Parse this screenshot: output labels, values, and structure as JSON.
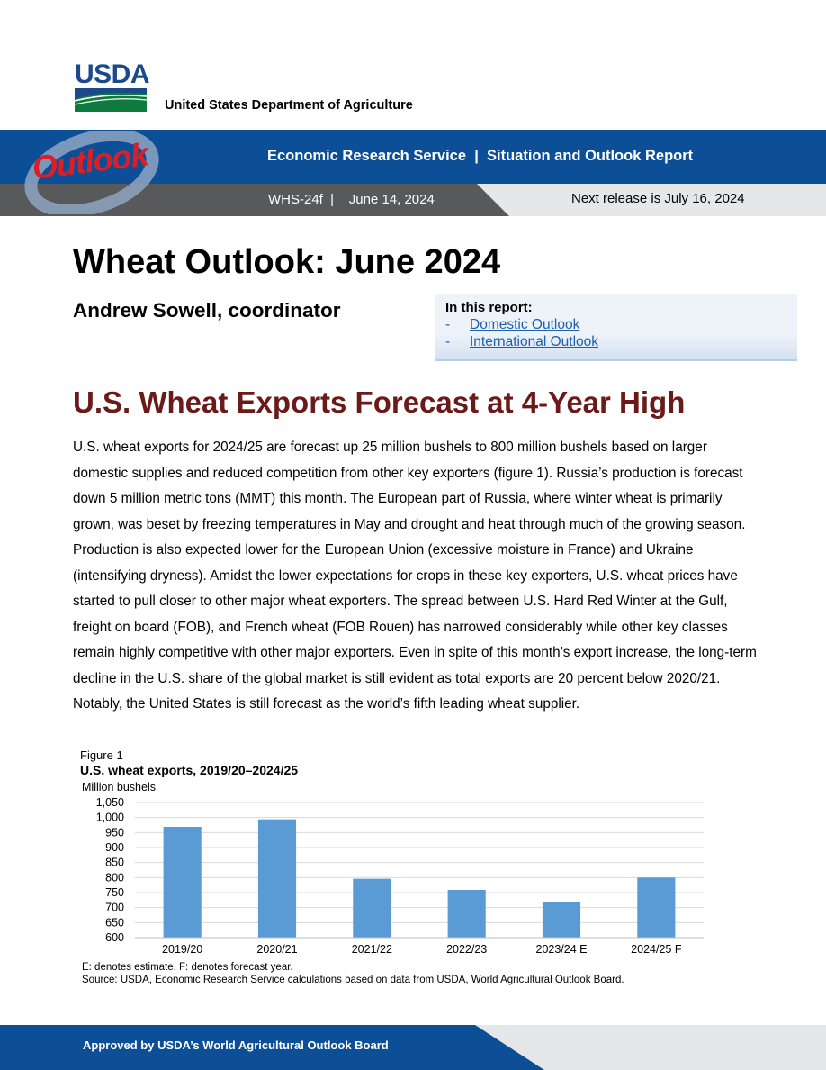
{
  "logo": {
    "word": "USDA",
    "agency": "United States Department of Agriculture"
  },
  "header": {
    "masthead": "Outlook",
    "service_line": "Economic Research Service  |  Situation and Outlook Report",
    "publication": "WHS-24f  |    June 14, 2024",
    "next_release": "Next release is July 16, 2024"
  },
  "title": "Wheat Outlook: June 2024",
  "coordinator": "Andrew Sowell, coordinator",
  "in_this_report": {
    "heading": "In this report:",
    "items": [
      {
        "dash": "-",
        "label": "Domestic Outlook"
      },
      {
        "dash": "-",
        "label": "International Outlook"
      }
    ]
  },
  "section_title": "U.S. Wheat Exports Forecast at 4-Year High",
  "body": "U.S. wheat exports for 2024/25 are forecast up 25 million bushels to 800 million bushels based on larger domestic supplies and reduced competition from other key exporters (figure 1). Russia’s production is forecast down 5 million metric tons (MMT) this month.  The European part of Russia, where winter wheat is primarily grown, was beset by freezing temperatures in May and drought and heat through much of the growing season. Production is also expected lower for the European Union (excessive moisture in France) and Ukraine (intensifying dryness). Amidst the lower expectations for crops in these key exporters, U.S. wheat prices have started to pull closer to other major wheat exporters. The spread between U.S. Hard Red Winter at the Gulf, freight on board (FOB), and French wheat (FOB Rouen) has narrowed considerably while other key classes remain highly competitive with other major exporters. Even in spite of this month’s export increase, the long-term decline in the U.S. share of the global market is still evident as total exports are 20 percent below 2020/21. Notably, the United States is still forecast as the world’s fifth leading wheat supplier.",
  "figure": {
    "label": "Figure 1",
    "title": "U.S. wheat exports, 2019/20–2024/25",
    "unit": "Million bushels",
    "note": "E: denotes estimate. F: denotes forecast year.",
    "source": "Source: USDA, Economic Research Service calculations based on data from USDA, World Agricultural Outlook Board."
  },
  "chart_data": {
    "type": "bar",
    "title": "U.S. wheat exports, 2019/20–2024/25",
    "ylabel": "Million bushels",
    "xlabel": "",
    "categories": [
      "2019/20",
      "2020/21",
      "2021/22",
      "2022/23",
      "2023/24 E",
      "2024/25 F"
    ],
    "values": [
      969,
      994,
      796,
      759,
      720,
      800
    ],
    "ylim": [
      600,
      1050
    ],
    "yticks": [
      600,
      650,
      700,
      750,
      800,
      850,
      900,
      950,
      1000,
      1050
    ],
    "ytick_labels": [
      "600",
      "650",
      "700",
      "750",
      "800",
      "850",
      "900",
      "950",
      "1,000",
      "1,050"
    ],
    "grid": true,
    "color": "#5b9bd5"
  },
  "footer": {
    "text": "Approved by USDA’s World Agricultural Outlook Board"
  },
  "colors": {
    "brand_blue": "#0d4f97",
    "banner_gray": "#58595b",
    "heading_red": "#6b1a1a",
    "link_blue": "#1f5fb0",
    "bar_blue": "#5b9bd5"
  }
}
